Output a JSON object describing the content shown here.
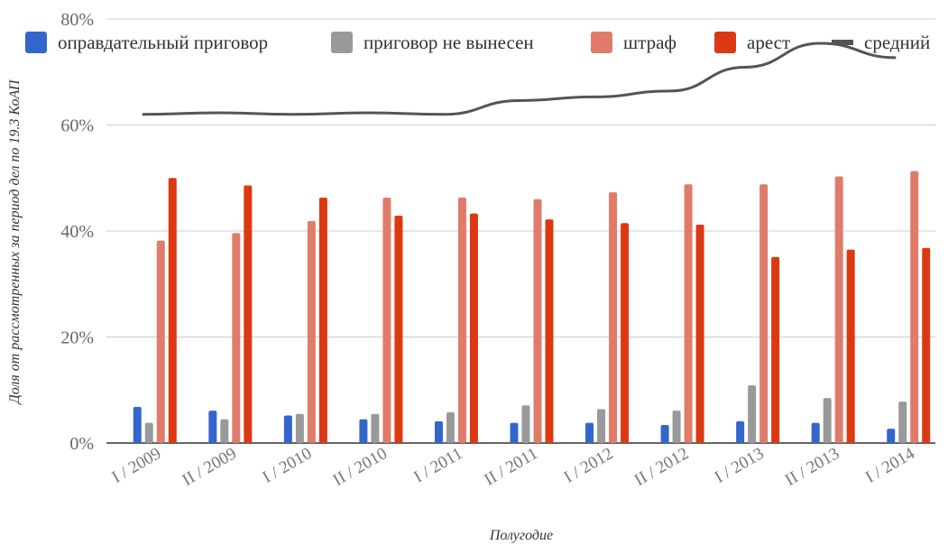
{
  "chart_data": {
    "type": "bar",
    "categories": [
      "I / 2009",
      "II / 2009",
      "I / 2010",
      "II / 2010",
      "I / 2011",
      "II / 2011",
      "I / 2012",
      "II / 2012",
      "I / 2013",
      "II / 2013",
      "I / 2014"
    ],
    "series": [
      {
        "name": "оправдательный приговор",
        "type": "bar",
        "color": "#3366cc",
        "values": [
          6.8,
          6.1,
          5.2,
          4.5,
          4.1,
          3.8,
          3.8,
          3.4,
          4.1,
          3.8,
          2.7
        ]
      },
      {
        "name": "приговор не вынесен",
        "type": "bar",
        "color": "#999999",
        "values": [
          3.8,
          4.5,
          5.5,
          5.5,
          5.8,
          7.1,
          6.4,
          6.1,
          10.9,
          8.5,
          7.8
        ]
      },
      {
        "name": "штраф",
        "type": "bar",
        "color": "#e07b6a",
        "values": [
          38.2,
          39.6,
          41.9,
          46.3,
          46.3,
          46.0,
          47.3,
          48.8,
          48.8,
          50.3,
          51.3
        ]
      },
      {
        "name": "арест",
        "type": "bar",
        "color": "#dc3912",
        "values": [
          50.0,
          48.6,
          46.3,
          42.9,
          43.3,
          42.2,
          41.5,
          41.2,
          35.1,
          36.5,
          36.8
        ]
      },
      {
        "name": "средний",
        "type": "line",
        "color": "#555555",
        "values": [
          62.0,
          62.3,
          62.0,
          62.3,
          62.0,
          64.6,
          65.3,
          66.4,
          70.9,
          75.4,
          72.7
        ]
      }
    ],
    "xlabel": "Полугодие",
    "ylabel": "Доля от рассмотренных за период дел по 19.3 КоАП",
    "ylim": [
      0,
      80
    ],
    "yticks": [
      "0%",
      "20%",
      "40%",
      "60%",
      "80%"
    ],
    "grid": true,
    "legend_position": "top"
  }
}
